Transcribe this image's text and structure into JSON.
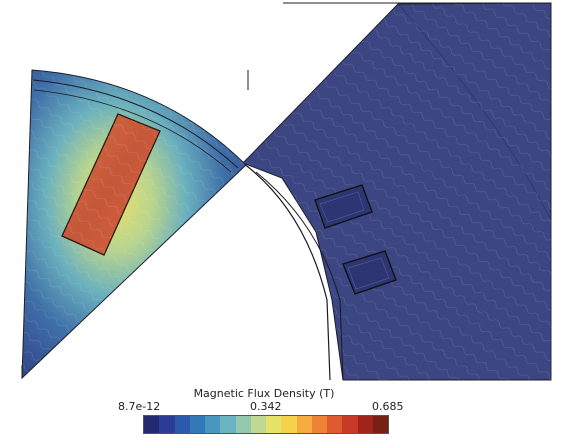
{
  "legend": {
    "title": "Magnetic Flux Density (T)",
    "min_label": "8.7e-12",
    "mid_label": "0.342",
    "max_label": "0.685",
    "min_value": 8.7e-12,
    "mid_value": 0.342,
    "max_value": 0.685,
    "colormap": [
      "#232a70",
      "#2a3c96",
      "#2c5aaa",
      "#3478b8",
      "#4a96c0",
      "#6ab3c0",
      "#92c8ae",
      "#bfd892",
      "#e6e36a",
      "#f6d24c",
      "#f5ab3e",
      "#ee8338",
      "#e05a30",
      "#c63a26",
      "#a0241c",
      "#782014"
    ]
  },
  "colors": {
    "air_field": "#3d4a86",
    "stator_field": "#3a4580",
    "magnet_core": "#c8593a",
    "magnet_edge": "#e88a45",
    "halo": "#e6e36a",
    "boundary": "#222222"
  }
}
